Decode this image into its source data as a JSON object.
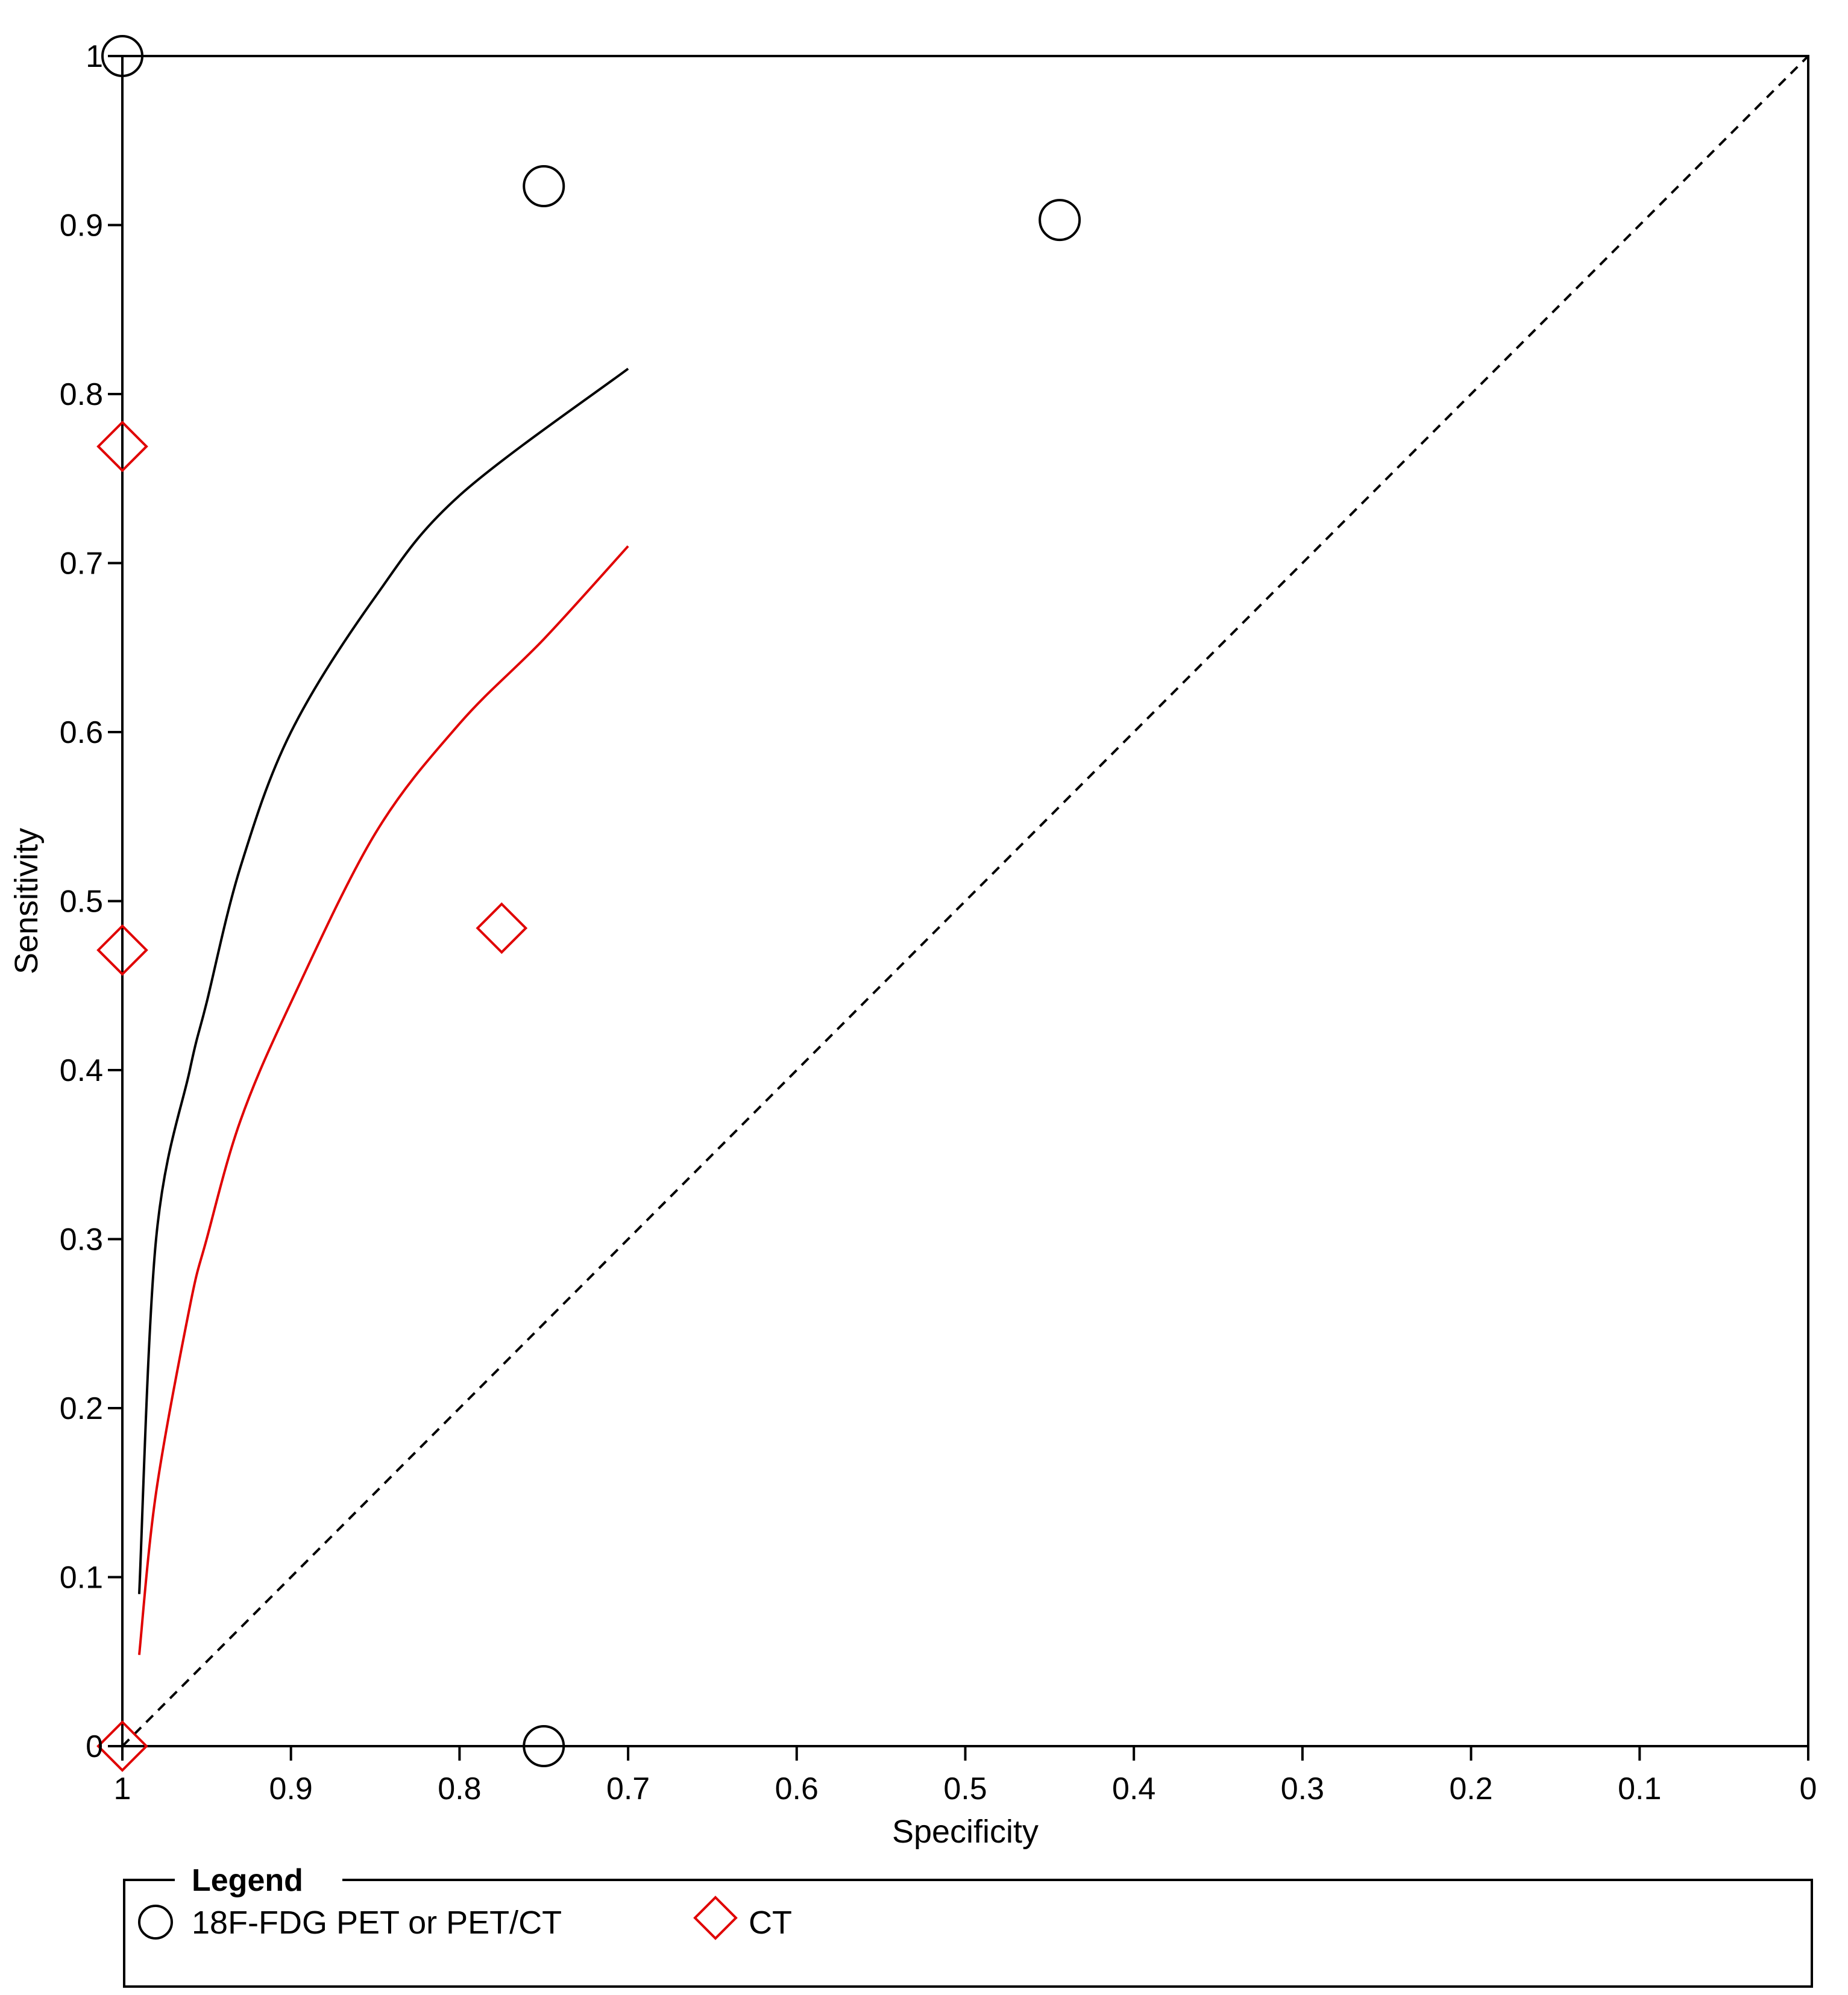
{
  "chart_data": {
    "type": "scatter",
    "title": "",
    "xlabel": "Specificity",
    "ylabel": "Sensitivity",
    "x_reversed": true,
    "xlim": [
      1,
      0
    ],
    "ylim": [
      0,
      1
    ],
    "x_ticks": [
      "1",
      "0.9",
      "0.8",
      "0.7",
      "0.6",
      "0.5",
      "0.4",
      "0.3",
      "0.2",
      "0.1",
      "0"
    ],
    "y_ticks": [
      "0",
      "0.1",
      "0.2",
      "0.3",
      "0.4",
      "0.5",
      "0.6",
      "0.7",
      "0.8",
      "0.9",
      "1"
    ],
    "grid": false,
    "reference_line": {
      "style": "dashed",
      "from": [
        1,
        0
      ],
      "to": [
        0,
        1
      ]
    },
    "series": [
      {
        "name": "18F-FDG PET or PET/CT",
        "marker": "circle",
        "color": "#000000",
        "points": [
          {
            "x": 1.0,
            "y": 1.0
          },
          {
            "x": 0.75,
            "y": 0.923
          },
          {
            "x": 0.444,
            "y": 0.903
          },
          {
            "x": 0.75,
            "y": 0.0
          }
        ],
        "curve": {
          "color": "#000000",
          "points": [
            [
              0.99,
              0.09
            ],
            [
              0.98,
              0.3
            ],
            [
              0.96,
              0.4
            ],
            [
              0.95,
              0.44
            ],
            [
              0.93,
              0.52
            ],
            [
              0.9,
              0.6
            ],
            [
              0.85,
              0.68
            ],
            [
              0.8,
              0.74
            ],
            [
              0.7,
              0.815
            ]
          ]
        }
      },
      {
        "name": "CT",
        "marker": "diamond",
        "color": "#e00000",
        "points": [
          {
            "x": 1.0,
            "y": 0.769
          },
          {
            "x": 1.0,
            "y": 0.471
          },
          {
            "x": 0.775,
            "y": 0.484
          },
          {
            "x": 1.0,
            "y": 0.0
          }
        ],
        "curve": {
          "color": "#e00000",
          "points": [
            [
              0.99,
              0.054
            ],
            [
              0.98,
              0.15
            ],
            [
              0.96,
              0.26
            ],
            [
              0.95,
              0.3
            ],
            [
              0.93,
              0.37
            ],
            [
              0.9,
              0.44
            ],
            [
              0.85,
              0.54
            ],
            [
              0.8,
              0.605
            ],
            [
              0.75,
              0.655
            ],
            [
              0.7,
              0.71
            ]
          ]
        }
      }
    ],
    "legend": {
      "title": "Legend",
      "position": "bottom"
    }
  }
}
